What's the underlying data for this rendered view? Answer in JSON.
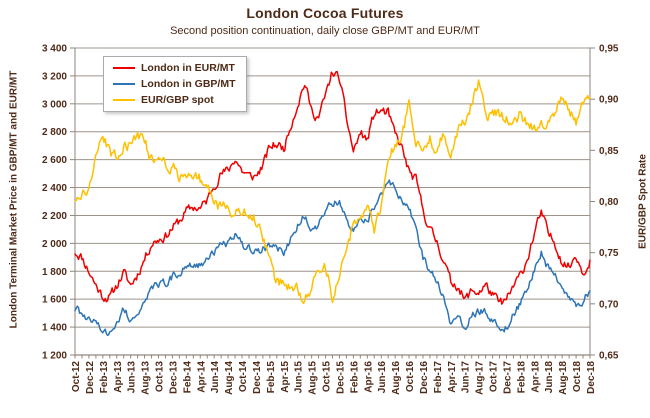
{
  "title": "London Cocoa Futures",
  "subtitle": "Second position continuation, daily close GBP/MT and EUR/MT",
  "colors": {
    "text": "#4e2a17",
    "grid": "#9d948c",
    "axis": "#8f867e",
    "series_eur": "#f00000",
    "series_gbp": "#2e75b6",
    "series_spot": "#ffc000",
    "legend_border": "#ababab",
    "background": "#ffffff"
  },
  "legend": {
    "items": [
      {
        "label": "London in EUR/MT",
        "color": "#f00000"
      },
      {
        "label": "London in GBP/MT",
        "color": "#2e75b6"
      },
      {
        "label": "EUR/GBP spot",
        "color": "#ffc000"
      }
    ]
  },
  "y_axis_left": {
    "title": "London Terminal Market Price in GBP/MT and EUR/MT",
    "min": 1200,
    "max": 3400,
    "step": 200,
    "tick_labels": [
      "1 200",
      "1 400",
      "1 600",
      "1 800",
      "2 000",
      "2 200",
      "2 400",
      "2 600",
      "2 800",
      "3 000",
      "3 200",
      "3 400"
    ]
  },
  "y_axis_right": {
    "title": "EUR/GBP Spot Rate",
    "min": 0.65,
    "max": 0.95,
    "step": 0.05,
    "tick_labels": [
      "0,65",
      "0,70",
      "0,75",
      "0,80",
      "0,85",
      "0,90",
      "0,95"
    ]
  },
  "x_axis": {
    "tick_labels": [
      "Oct-12",
      "Dec-12",
      "Feb-13",
      "Apr-13",
      "Jun-13",
      "Aug-13",
      "Oct-13",
      "Dec-13",
      "Feb-14",
      "Apr-14",
      "Jun-14",
      "Aug-14",
      "Oct-14",
      "Dec-14",
      "Feb-15",
      "Apr-15",
      "Jun-15",
      "Aug-15",
      "Oct-15",
      "Dec-15",
      "Feb-16",
      "Apr-16",
      "Jun-16",
      "Aug-16",
      "Oct-16",
      "Dec-16",
      "Feb-17",
      "Apr-17",
      "Jun-17",
      "Aug-17",
      "Oct-17",
      "Dec-17",
      "Feb-18",
      "Apr-18",
      "Jun-18",
      "Aug-18",
      "Oct-18",
      "Dec-18"
    ]
  },
  "chart_data": {
    "type": "line",
    "title": "London Cocoa Futures",
    "subtitle": "Second position continuation, daily close GBP/MT and EUR/MT",
    "x": {
      "start": "Oct-2012",
      "end": "Dec-2018",
      "interval": "monthly",
      "points": 75
    },
    "ylim_left": [
      1200,
      3400
    ],
    "ylim_right": [
      0.65,
      0.95
    ],
    "grid": "horizontal",
    "legend_position": "top-left-inside",
    "series": [
      {
        "name": "London in EUR/MT",
        "axis": "left",
        "color": "#f00000",
        "values": [
          1940,
          1900,
          1800,
          1700,
          1620,
          1610,
          1700,
          1790,
          1700,
          1780,
          1890,
          2000,
          2030,
          2050,
          2110,
          2160,
          2230,
          2260,
          2250,
          2310,
          2420,
          2500,
          2520,
          2610,
          2520,
          2480,
          2480,
          2560,
          2690,
          2710,
          2680,
          2850,
          3000,
          3150,
          2950,
          2900,
          3060,
          3230,
          3180,
          2900,
          2660,
          2790,
          2740,
          2930,
          2950,
          2930,
          2780,
          2680,
          2510,
          2450,
          2240,
          2100,
          2010,
          1880,
          1720,
          1700,
          1590,
          1660,
          1650,
          1700,
          1630,
          1570,
          1590,
          1690,
          1770,
          1890,
          2070,
          2220,
          2070,
          2000,
          1870,
          1830,
          1920,
          1790,
          1880
        ]
      },
      {
        "name": "London in GBP/MT",
        "axis": "left",
        "color": "#2e75b6",
        "values": [
          1530,
          1500,
          1440,
          1420,
          1380,
          1360,
          1440,
          1520,
          1450,
          1510,
          1590,
          1680,
          1700,
          1710,
          1760,
          1780,
          1840,
          1860,
          1850,
          1880,
          1930,
          1980,
          2000,
          2060,
          1990,
          1960,
          1940,
          1960,
          1990,
          1960,
          1930,
          2040,
          2140,
          2200,
          2110,
          2110,
          2250,
          2280,
          2300,
          2190,
          2080,
          2200,
          2170,
          2260,
          2340,
          2460,
          2380,
          2300,
          2260,
          2110,
          1900,
          1810,
          1710,
          1630,
          1420,
          1480,
          1400,
          1480,
          1520,
          1500,
          1450,
          1390,
          1400,
          1490,
          1570,
          1660,
          1800,
          1940,
          1820,
          1780,
          1690,
          1630,
          1560,
          1590,
          1660
        ]
      },
      {
        "name": "EUR/GBP spot",
        "axis": "right",
        "color": "#ffc000",
        "values": [
          0.803,
          0.806,
          0.813,
          0.84,
          0.865,
          0.847,
          0.845,
          0.855,
          0.853,
          0.865,
          0.858,
          0.84,
          0.85,
          0.836,
          0.834,
          0.825,
          0.823,
          0.829,
          0.821,
          0.814,
          0.801,
          0.792,
          0.796,
          0.79,
          0.789,
          0.79,
          0.782,
          0.763,
          0.741,
          0.722,
          0.721,
          0.716,
          0.714,
          0.701,
          0.716,
          0.731,
          0.736,
          0.706,
          0.726,
          0.755,
          0.778,
          0.79,
          0.792,
          0.772,
          0.795,
          0.84,
          0.855,
          0.862,
          0.898,
          0.858,
          0.85,
          0.86,
          0.85,
          0.866,
          0.846,
          0.871,
          0.879,
          0.894,
          0.918,
          0.882,
          0.89,
          0.885,
          0.881,
          0.882,
          0.885,
          0.874,
          0.87,
          0.875,
          0.88,
          0.89,
          0.9,
          0.89,
          0.874,
          0.892,
          0.901
        ]
      }
    ]
  }
}
